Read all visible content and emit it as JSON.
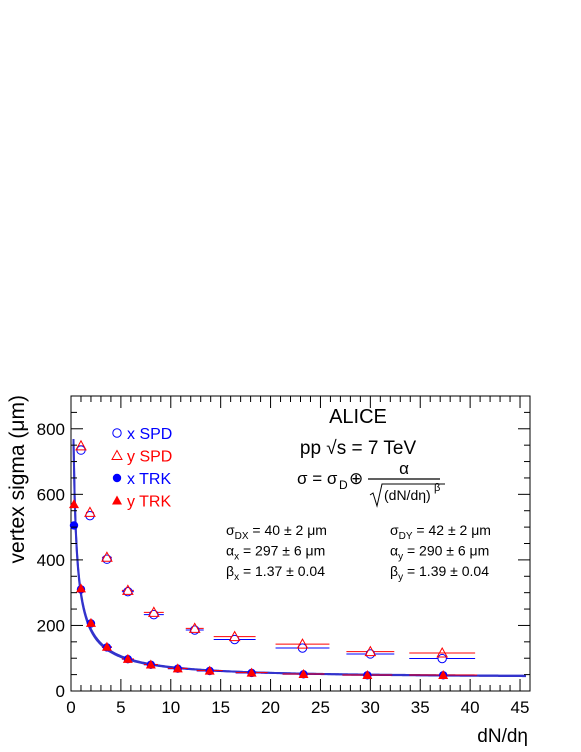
{
  "colors": {
    "spd_x": "#0000ff",
    "spd_y": "#ff0000",
    "trk_x": "#0000ff",
    "trk_y": "#ff0000",
    "fit": "#3333cc",
    "axis": "#000000"
  },
  "chart_data": {
    "type": "scatter",
    "xlabel": "dN/dη",
    "ylabel": "vertex sigma (μm)",
    "xlim": [
      0,
      46
    ],
    "ylim": [
      0,
      900
    ],
    "x_ticks": [
      0,
      5,
      10,
      15,
      20,
      25,
      30,
      35,
      40,
      45
    ],
    "y_ticks": [
      0,
      200,
      400,
      600,
      800
    ],
    "grid": false,
    "legend_position": "top-left",
    "series": [
      {
        "name": "x SPD",
        "marker": "open-circle",
        "color": "#0000ff",
        "points": [
          {
            "x": 1.0,
            "xerr": 0.3,
            "y": 735
          },
          {
            "x": 1.9,
            "xerr": 0.4,
            "y": 535
          },
          {
            "x": 3.6,
            "xerr": 0.5,
            "y": 402
          },
          {
            "x": 5.7,
            "xerr": 0.6,
            "y": 303
          },
          {
            "x": 8.3,
            "xerr": 1.0,
            "y": 233
          },
          {
            "x": 12.4,
            "xerr": 0.9,
            "y": 186
          },
          {
            "x": 16.4,
            "xerr": 2.1,
            "y": 157
          },
          {
            "x": 23.2,
            "xerr": 2.7,
            "y": 131
          },
          {
            "x": 30.0,
            "xerr": 2.4,
            "y": 113
          },
          {
            "x": 37.2,
            "xerr": 3.3,
            "y": 99
          }
        ]
      },
      {
        "name": "y SPD",
        "marker": "open-triangle",
        "color": "#ff0000",
        "points": [
          {
            "x": 1.0,
            "xerr": 0.3,
            "y": 748
          },
          {
            "x": 1.9,
            "xerr": 0.4,
            "y": 545
          },
          {
            "x": 3.6,
            "xerr": 0.5,
            "y": 408
          },
          {
            "x": 5.7,
            "xerr": 0.6,
            "y": 307
          },
          {
            "x": 8.3,
            "xerr": 1.0,
            "y": 240
          },
          {
            "x": 12.4,
            "xerr": 0.9,
            "y": 191
          },
          {
            "x": 16.4,
            "xerr": 2.1,
            "y": 166
          },
          {
            "x": 23.2,
            "xerr": 2.7,
            "y": 143
          },
          {
            "x": 30.0,
            "xerr": 2.4,
            "y": 120
          },
          {
            "x": 37.2,
            "xerr": 3.3,
            "y": 116
          }
        ]
      },
      {
        "name": "x TRK",
        "marker": "filled-circle",
        "color": "#0000ff",
        "points": [
          {
            "x": 0.3,
            "xerr": 0.2,
            "y": 505
          },
          {
            "x": 1.0,
            "xerr": 0.3,
            "y": 310
          },
          {
            "x": 2.0,
            "xerr": 0.4,
            "y": 206
          },
          {
            "x": 3.6,
            "xerr": 0.5,
            "y": 133
          },
          {
            "x": 5.7,
            "xerr": 0.6,
            "y": 97
          },
          {
            "x": 8.0,
            "xerr": 0.7,
            "y": 80
          },
          {
            "x": 10.7,
            "xerr": 1.0,
            "y": 68
          },
          {
            "x": 13.9,
            "xerr": 1.3,
            "y": 61
          },
          {
            "x": 18.1,
            "xerr": 1.6,
            "y": 55
          },
          {
            "x": 23.3,
            "xerr": 2.1,
            "y": 51
          },
          {
            "x": 29.7,
            "xerr": 2.5,
            "y": 48
          },
          {
            "x": 37.3,
            "xerr": 3.4,
            "y": 48
          }
        ]
      },
      {
        "name": "y TRK",
        "marker": "filled-triangle",
        "color": "#ff0000",
        "points": [
          {
            "x": 0.3,
            "xerr": 0.2,
            "y": 570
          },
          {
            "x": 1.0,
            "xerr": 0.3,
            "y": 313
          },
          {
            "x": 2.0,
            "xerr": 0.4,
            "y": 208
          },
          {
            "x": 3.6,
            "xerr": 0.5,
            "y": 135
          },
          {
            "x": 5.7,
            "xerr": 0.6,
            "y": 98
          },
          {
            "x": 8.0,
            "xerr": 0.7,
            "y": 81
          },
          {
            "x": 10.7,
            "xerr": 1.0,
            "y": 69
          },
          {
            "x": 13.9,
            "xerr": 1.3,
            "y": 62
          },
          {
            "x": 18.1,
            "xerr": 1.6,
            "y": 56
          },
          {
            "x": 23.3,
            "xerr": 2.1,
            "y": 52
          },
          {
            "x": 29.7,
            "xerr": 2.5,
            "y": 49
          },
          {
            "x": 37.3,
            "xerr": 3.4,
            "y": 49
          }
        ]
      }
    ],
    "fits": [
      {
        "series": "x TRK",
        "sigma_d": 40,
        "alpha": 297,
        "beta": 1.37,
        "color": "#3333cc"
      },
      {
        "series": "y TRK",
        "sigma_d": 42,
        "alpha": 290,
        "beta": 1.39,
        "color": "#3333cc"
      }
    ],
    "annotations": {
      "experiment": "ALICE",
      "energy": "pp √s = 7 TeV",
      "formula": "σ = σD ⊕ α / √((dN/dη)^β)",
      "fit_x": [
        "σDX = 40 ± 2 μm",
        "αx = 297 ± 6 μm",
        "βx = 1.37 ± 0.04"
      ],
      "fit_y": [
        "σDY = 42 ± 2 μm",
        "αy = 290 ± 6 μm",
        "βy = 1.39 ± 0.04"
      ]
    }
  }
}
